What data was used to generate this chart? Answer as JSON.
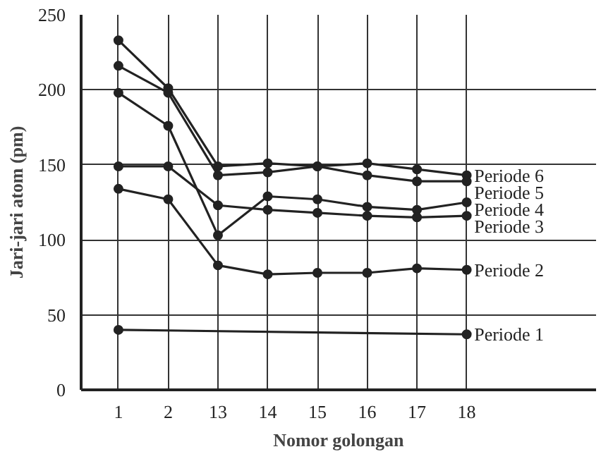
{
  "chart_data": {
    "type": "line",
    "xlabel": "Nomor golongan",
    "ylabel": "Jari-jari atom (pm)",
    "categories": [
      "1",
      "2",
      "13",
      "14",
      "15",
      "16",
      "17",
      "18"
    ],
    "ylim": [
      0,
      250
    ],
    "yticks": [
      0,
      50,
      100,
      150,
      200,
      250
    ],
    "grid": true,
    "marker": "circle",
    "series": [
      {
        "name": "Periode 6",
        "color": "#222222",
        "values": [
          233,
          201,
          149,
          151,
          149,
          151,
          147,
          143
        ]
      },
      {
        "name": "Periode 5",
        "color": "#222222",
        "values": [
          216,
          198,
          143,
          145,
          149,
          143,
          139,
          139
        ]
      },
      {
        "name": "Periode 4",
        "color": "#222222",
        "values": [
          198,
          176,
          103,
          129,
          127,
          122,
          120,
          125
        ]
      },
      {
        "name": "Periode 3",
        "color": "#222222",
        "values": [
          149,
          149,
          123,
          120,
          118,
          116,
          115,
          116
        ]
      },
      {
        "name": "Periode 2",
        "color": "#222222",
        "values": [
          134,
          127,
          83,
          77,
          78,
          78,
          81,
          80
        ]
      },
      {
        "name": "Periode 1",
        "color": "#222222",
        "values": [
          40,
          null,
          null,
          null,
          null,
          null,
          null,
          37
        ]
      }
    ]
  }
}
